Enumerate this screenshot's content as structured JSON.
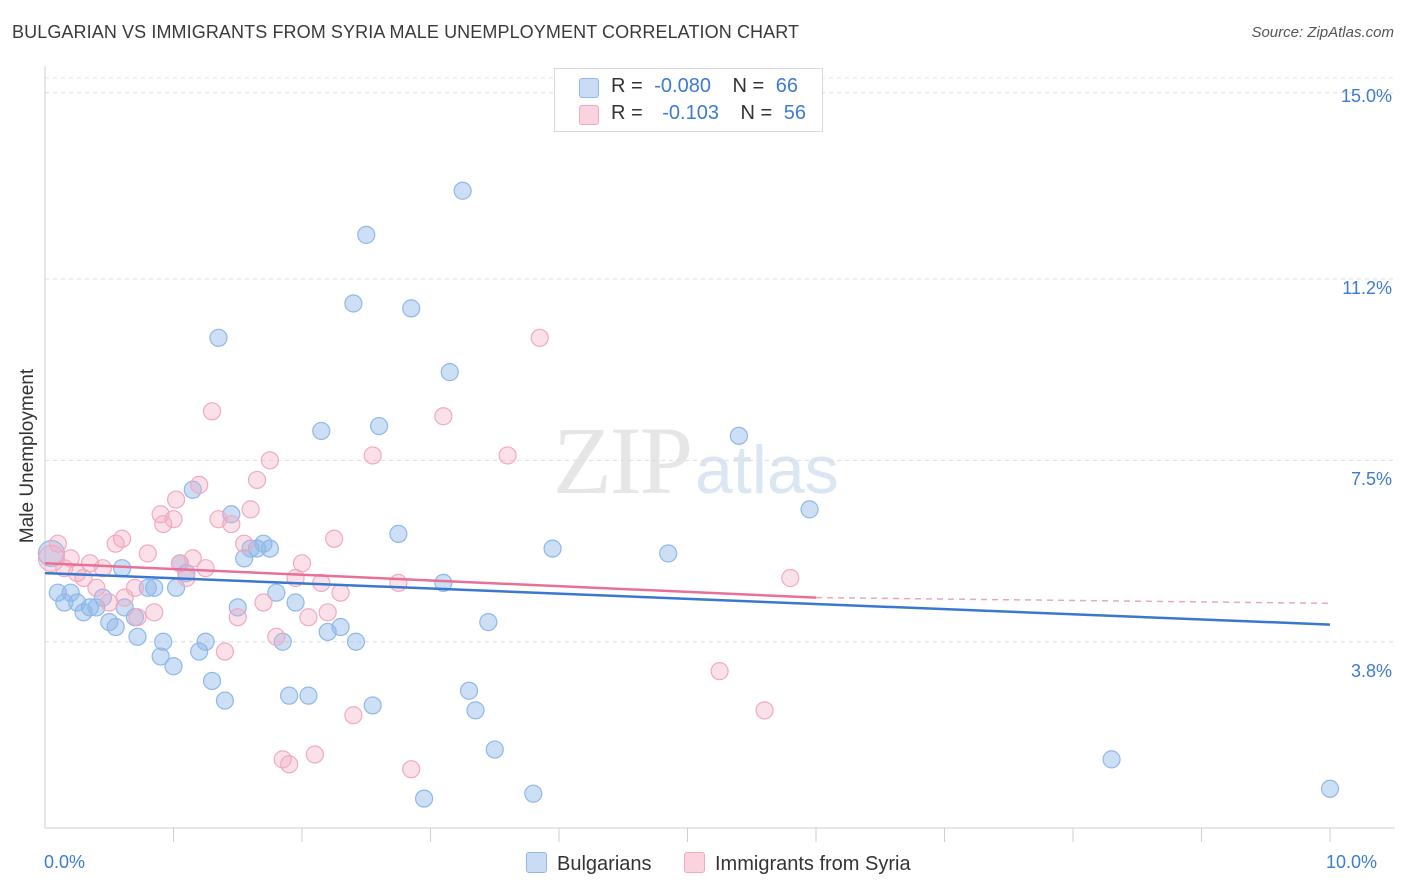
{
  "title": "BULGARIAN VS IMMIGRANTS FROM SYRIA MALE UNEMPLOYMENT CORRELATION CHART",
  "source": "Source: ZipAtlas.com",
  "watermark": {
    "zip": "ZIP",
    "atlas": "atlas"
  },
  "legend": {
    "r_label": "R =",
    "n_label": "N =",
    "rows": [
      {
        "r": "-0.080",
        "n": "66"
      },
      {
        "r": "-0.103",
        "n": "56"
      }
    ]
  },
  "y_axis": {
    "label": "Male Unemployment",
    "ticks": [
      "15.0%",
      "11.2%",
      "7.5%",
      "3.8%"
    ]
  },
  "x_axis": {
    "min_label": "0.0%",
    "max_label": "10.0%"
  },
  "colors": {
    "blue": "#8fb8e8",
    "blue_line": "#3a78d0",
    "pink": "#f2a9c0",
    "pink_line": "#e87098",
    "value_text": "#3d7bd1"
  },
  "chart_data": {
    "type": "scatter",
    "title": "BULGARIAN VS IMMIGRANTS FROM SYRIA MALE UNEMPLOYMENT CORRELATION CHART",
    "xlabel": "",
    "ylabel": "Male Unemployment",
    "xlim": [
      0,
      10
    ],
    "ylim": [
      0,
      15.3
    ],
    "yticks": [
      3.8,
      7.5,
      11.2,
      15.0
    ],
    "grid": true,
    "series": [
      {
        "name": "Bulgarians",
        "r": -0.08,
        "n": 66,
        "trend": {
          "x": [
            0,
            10
          ],
          "y": [
            5.2,
            4.15
          ]
        },
        "points": [
          [
            0.05,
            5.6
          ],
          [
            0.1,
            4.8
          ],
          [
            0.15,
            4.6
          ],
          [
            0.2,
            4.8
          ],
          [
            0.25,
            4.6
          ],
          [
            0.3,
            4.4
          ],
          [
            0.35,
            4.5
          ],
          [
            0.4,
            4.5
          ],
          [
            0.45,
            4.7
          ],
          [
            0.5,
            4.2
          ],
          [
            0.55,
            4.1
          ],
          [
            0.6,
            5.3
          ],
          [
            0.62,
            4.5
          ],
          [
            0.7,
            4.3
          ],
          [
            0.72,
            3.9
          ],
          [
            0.8,
            4.9
          ],
          [
            0.85,
            4.9
          ],
          [
            0.9,
            3.5
          ],
          [
            0.92,
            3.8
          ],
          [
            1.0,
            3.3
          ],
          [
            1.02,
            4.9
          ],
          [
            1.05,
            5.4
          ],
          [
            1.1,
            5.2
          ],
          [
            1.15,
            6.9
          ],
          [
            1.2,
            3.6
          ],
          [
            1.25,
            3.8
          ],
          [
            1.3,
            3.0
          ],
          [
            1.35,
            10.0
          ],
          [
            1.4,
            2.6
          ],
          [
            1.45,
            6.4
          ],
          [
            1.5,
            4.5
          ],
          [
            1.55,
            5.5
          ],
          [
            1.6,
            5.7
          ],
          [
            1.65,
            5.7
          ],
          [
            1.7,
            5.8
          ],
          [
            1.75,
            5.7
          ],
          [
            1.8,
            4.8
          ],
          [
            1.85,
            3.8
          ],
          [
            1.9,
            2.7
          ],
          [
            1.95,
            4.6
          ],
          [
            2.05,
            2.7
          ],
          [
            2.15,
            8.1
          ],
          [
            2.2,
            4.0
          ],
          [
            2.3,
            4.1
          ],
          [
            2.4,
            10.7
          ],
          [
            2.42,
            3.8
          ],
          [
            2.5,
            12.1
          ],
          [
            2.55,
            2.5
          ],
          [
            2.6,
            8.2
          ],
          [
            2.75,
            6.0
          ],
          [
            2.85,
            10.6
          ],
          [
            2.95,
            0.6
          ],
          [
            3.1,
            5.0
          ],
          [
            3.15,
            9.3
          ],
          [
            3.25,
            13.0
          ],
          [
            3.3,
            2.8
          ],
          [
            3.35,
            2.4
          ],
          [
            3.45,
            4.2
          ],
          [
            3.5,
            1.6
          ],
          [
            3.8,
            0.7
          ],
          [
            3.95,
            5.7
          ],
          [
            4.85,
            5.6
          ],
          [
            5.4,
            8.0
          ],
          [
            5.95,
            6.5
          ],
          [
            8.3,
            1.4
          ],
          [
            10.0,
            0.8
          ]
        ]
      },
      {
        "name": "Immigrants from Syria",
        "r": -0.103,
        "n": 56,
        "trend": {
          "x": [
            0,
            6
          ],
          "y": [
            5.4,
            4.7
          ]
        },
        "points": [
          [
            0.05,
            5.5
          ],
          [
            0.1,
            5.8
          ],
          [
            0.15,
            5.3
          ],
          [
            0.2,
            5.5
          ],
          [
            0.25,
            5.2
          ],
          [
            0.3,
            5.1
          ],
          [
            0.35,
            5.4
          ],
          [
            0.4,
            4.9
          ],
          [
            0.45,
            5.3
          ],
          [
            0.5,
            4.6
          ],
          [
            0.55,
            5.8
          ],
          [
            0.6,
            5.9
          ],
          [
            0.62,
            4.7
          ],
          [
            0.7,
            4.9
          ],
          [
            0.72,
            4.3
          ],
          [
            0.8,
            5.6
          ],
          [
            0.85,
            4.4
          ],
          [
            0.9,
            6.4
          ],
          [
            0.92,
            6.2
          ],
          [
            1.0,
            6.3
          ],
          [
            1.02,
            6.7
          ],
          [
            1.05,
            5.4
          ],
          [
            1.1,
            5.1
          ],
          [
            1.15,
            5.5
          ],
          [
            1.2,
            7.0
          ],
          [
            1.25,
            5.3
          ],
          [
            1.3,
            8.5
          ],
          [
            1.35,
            6.3
          ],
          [
            1.4,
            3.6
          ],
          [
            1.45,
            6.2
          ],
          [
            1.5,
            4.3
          ],
          [
            1.55,
            5.8
          ],
          [
            1.6,
            6.5
          ],
          [
            1.65,
            7.1
          ],
          [
            1.7,
            4.6
          ],
          [
            1.75,
            7.5
          ],
          [
            1.8,
            3.9
          ],
          [
            1.85,
            1.4
          ],
          [
            1.9,
            1.3
          ],
          [
            1.95,
            5.1
          ],
          [
            2.0,
            5.4
          ],
          [
            2.05,
            4.3
          ],
          [
            2.1,
            1.5
          ],
          [
            2.15,
            5.0
          ],
          [
            2.2,
            4.4
          ],
          [
            2.25,
            5.9
          ],
          [
            2.3,
            4.8
          ],
          [
            2.4,
            2.3
          ],
          [
            2.55,
            7.6
          ],
          [
            2.75,
            5.0
          ],
          [
            2.85,
            1.2
          ],
          [
            3.1,
            8.4
          ],
          [
            3.6,
            7.6
          ],
          [
            3.85,
            10.0
          ],
          [
            5.25,
            3.2
          ],
          [
            5.6,
            2.4
          ],
          [
            5.8,
            5.1
          ]
        ]
      }
    ]
  }
}
